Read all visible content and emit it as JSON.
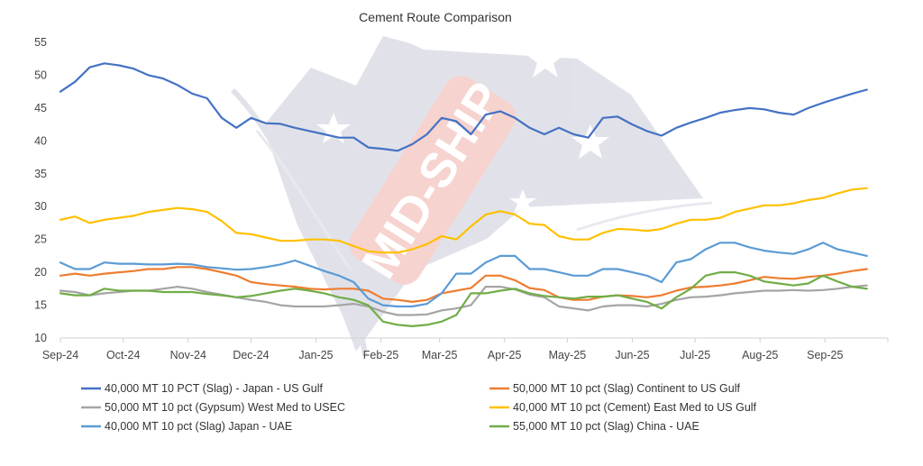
{
  "chart_data": {
    "type": "line",
    "title": "Cement Route Comparison",
    "xlabel": "",
    "ylabel": "",
    "ylim": [
      10,
      55
    ],
    "yticks": [
      10,
      15,
      20,
      25,
      30,
      35,
      40,
      45,
      50,
      55
    ],
    "xticks": [
      "Sep-24",
      "Oct-24",
      "Nov-24",
      "Dec-24",
      "Jan-25",
      "Feb-25",
      "Mar-25",
      "Apr-25",
      "May-25",
      "Jun-25",
      "Jul-25",
      "Aug-25",
      "Sep-25"
    ],
    "grid": false,
    "legend_position": "bottom",
    "watermark_text": "MID-SHIP",
    "x": [
      "2024-09-01",
      "2024-09-08",
      "2024-09-15",
      "2024-09-22",
      "2024-09-29",
      "2024-10-06",
      "2024-10-13",
      "2024-10-20",
      "2024-10-27",
      "2024-11-03",
      "2024-11-10",
      "2024-11-17",
      "2024-11-24",
      "2024-12-01",
      "2024-12-08",
      "2024-12-15",
      "2024-12-22",
      "2024-12-29",
      "2025-01-05",
      "2025-01-12",
      "2025-01-19",
      "2025-01-26",
      "2025-02-02",
      "2025-02-09",
      "2025-02-16",
      "2025-02-23",
      "2025-03-02",
      "2025-03-09",
      "2025-03-16",
      "2025-03-23",
      "2025-03-30",
      "2025-04-06",
      "2025-04-13",
      "2025-04-20",
      "2025-04-27",
      "2025-05-04",
      "2025-05-11",
      "2025-05-18",
      "2025-05-25",
      "2025-06-01",
      "2025-06-08",
      "2025-06-15",
      "2025-06-22",
      "2025-06-29",
      "2025-07-06",
      "2025-07-13",
      "2025-07-20",
      "2025-07-27",
      "2025-08-03",
      "2025-08-10",
      "2025-08-17",
      "2025-08-24",
      "2025-08-31",
      "2025-09-07",
      "2025-09-14",
      "2025-09-21"
    ],
    "series": [
      {
        "name": "40,000 MT 10 PCT  (Slag) - Japan - US Gulf",
        "color": "#4472C4",
        "values": [
          47.5,
          49,
          51.2,
          51.8,
          51.5,
          51,
          50,
          49.5,
          48.5,
          47.2,
          46.5,
          43.5,
          42,
          43.5,
          42.7,
          42.6,
          42,
          41.5,
          41,
          40.5,
          40.5,
          39,
          38.8,
          38.5,
          39.5,
          41,
          43.5,
          43,
          41,
          44,
          44.5,
          43.5,
          42,
          41,
          42,
          41,
          40.5,
          43.5,
          43.7,
          42.5,
          41.5,
          40.8,
          42,
          42.8,
          43.5,
          44.3,
          44.7,
          45,
          44.8,
          44.3,
          44,
          45,
          45.8,
          46.5,
          47.2,
          47.8
        ]
      },
      {
        "name": "50,000 MT 10 pct (Slag) Continent  to US Gulf",
        "color": "#ED7D31",
        "values": [
          19.5,
          19.8,
          19.5,
          19.8,
          20,
          20.2,
          20.5,
          20.5,
          20.8,
          20.8,
          20.5,
          20,
          19.5,
          18.5,
          18.2,
          18,
          17.8,
          17.5,
          17.4,
          17.5,
          17.5,
          17.2,
          16,
          15.8,
          15.5,
          15.8,
          16.8,
          17.2,
          17.6,
          19.5,
          19.5,
          18.8,
          17.6,
          17.3,
          16.2,
          15.8,
          15.8,
          16.3,
          16.5,
          16.4,
          16.2,
          16.5,
          17.2,
          17.7,
          17.8,
          18,
          18.3,
          18.8,
          19.3,
          19.1,
          19,
          19.3,
          19.5,
          19.8,
          20.2,
          20.5
        ]
      },
      {
        "name": "50,000 MT 10 pct  (Gypsum) West Med  to USEC",
        "color": "#A5A5A5",
        "values": [
          17.2,
          17,
          16.5,
          16.8,
          17,
          17.2,
          17.2,
          17.5,
          17.8,
          17.5,
          17,
          16.6,
          16.2,
          15.8,
          15.5,
          15,
          14.8,
          14.8,
          14.8,
          15,
          15.2,
          14.8,
          14,
          13.5,
          13.5,
          13.6,
          14.2,
          14.5,
          15,
          17.8,
          17.8,
          17.4,
          16.6,
          16.2,
          14.8,
          14.5,
          14.2,
          14.8,
          15,
          15,
          14.8,
          15.2,
          15.8,
          16.2,
          16.3,
          16.5,
          16.8,
          17,
          17.2,
          17.2,
          17.3,
          17.2,
          17.3,
          17.5,
          17.8,
          18
        ]
      },
      {
        "name": "40,000 MT 10 pct (Cement) East Med to US Gulf",
        "color": "#FFC000",
        "values": [
          28,
          28.5,
          27.5,
          28,
          28.3,
          28.6,
          29.2,
          29.5,
          29.8,
          29.6,
          29.2,
          27.8,
          26,
          25.8,
          25.3,
          24.8,
          24.8,
          25,
          25,
          24.8,
          24,
          23.2,
          23,
          23,
          23.5,
          24.3,
          25.5,
          25,
          27,
          28.8,
          29.3,
          28.8,
          27.4,
          27.2,
          25.5,
          25,
          25,
          26,
          26.6,
          26.5,
          26.3,
          26.6,
          27.4,
          28,
          28,
          28.3,
          29.2,
          29.7,
          30.2,
          30.2,
          30.5,
          31,
          31.3,
          32,
          32.6,
          32.8
        ]
      },
      {
        "name": "40,000 MT 10 pct  (Slag) Japan - UAE",
        "color": "#5B9BD5",
        "values": [
          21.5,
          20.5,
          20.5,
          21.5,
          21.3,
          21.3,
          21.2,
          21.2,
          21.3,
          21.2,
          20.8,
          20.6,
          20.4,
          20.5,
          20.8,
          21.2,
          21.8,
          21,
          20.2,
          19.5,
          18.5,
          16,
          15,
          14.8,
          14.8,
          15.2,
          16.8,
          19.8,
          19.8,
          21.5,
          22.5,
          22.5,
          20.5,
          20.5,
          20,
          19.5,
          19.5,
          20.5,
          20.5,
          20,
          19.5,
          18.5,
          21.5,
          22,
          23.5,
          24.5,
          24.5,
          23.8,
          23.3,
          23,
          22.8,
          23.5,
          24.5,
          23.5,
          23,
          22.5
        ]
      },
      {
        "name": "55,000 MT 10 pct  (Slag) China - UAE",
        "color": "#70AD47",
        "values": [
          16.8,
          16.5,
          16.5,
          17.5,
          17.2,
          17.2,
          17.2,
          17,
          17,
          17,
          16.7,
          16.5,
          16.2,
          16.4,
          16.8,
          17.2,
          17.5,
          17.2,
          16.8,
          16.2,
          15.8,
          15,
          12.5,
          12,
          11.8,
          12,
          12.5,
          13.5,
          16.8,
          16.8,
          17.2,
          17.5,
          16.8,
          16.4,
          16.2,
          16,
          16.3,
          16.3,
          16.5,
          16,
          15.5,
          14.5,
          16.2,
          17.5,
          19.5,
          20,
          20,
          19.5,
          18.6,
          18.3,
          18,
          18.3,
          19.5,
          18.6,
          17.8,
          17.5
        ]
      }
    ]
  }
}
